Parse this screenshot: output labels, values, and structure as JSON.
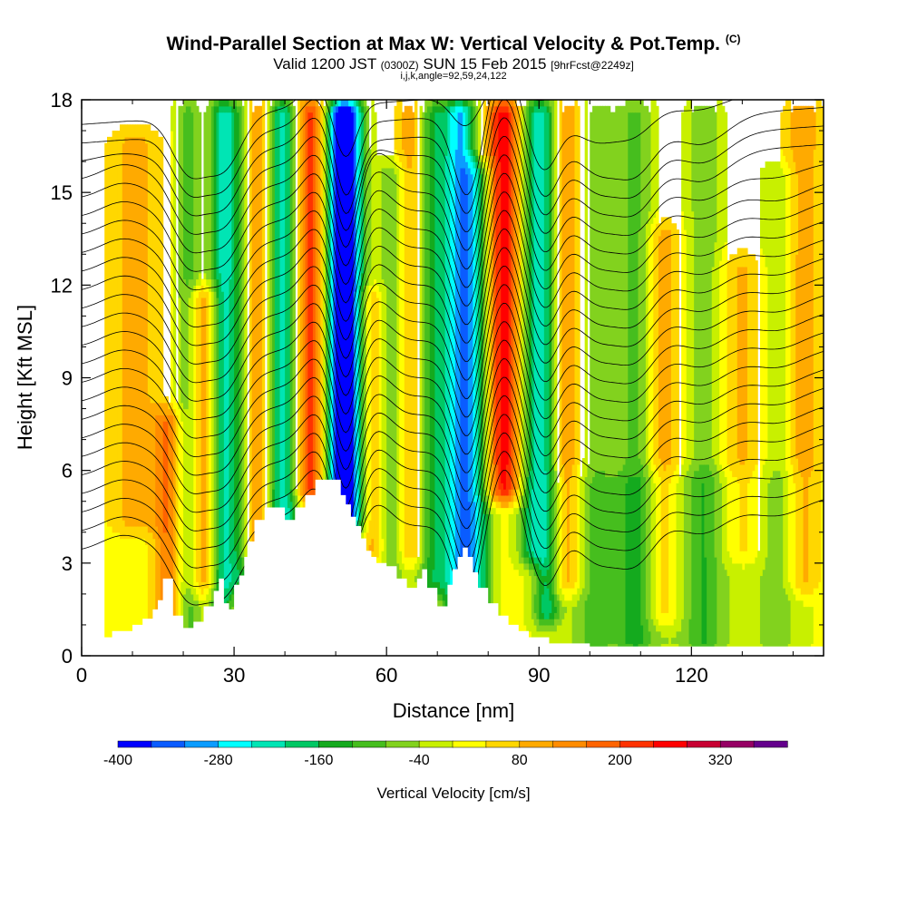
{
  "title": {
    "main": "Wind-Parallel Section at Max W: Vertical Velocity & Pot.Temp.",
    "copyright": "(C)",
    "valid_a": "Valid 1200 JST",
    "valid_z": "(0300Z)",
    "valid_b": "SUN 15 Feb 2015",
    "fcst": "[9hrFcst@2249z]",
    "params": "i,j,k,angle=92,59,24,122"
  },
  "chart_data": {
    "type": "heatmap",
    "title": "Wind-Parallel Section at Max W: Vertical Velocity & Pot.Temp.",
    "xlabel": "Distance [nm]",
    "ylabel": "Height [Kft MSL]",
    "xlim": [
      0,
      146
    ],
    "ylim": [
      0,
      18
    ],
    "x_ticks": [
      0,
      30,
      60,
      90,
      120
    ],
    "y_ticks": [
      0,
      3,
      6,
      9,
      12,
      15,
      18
    ],
    "colorbar": {
      "label": "Vertical Velocity [cm/s]",
      "tick_values": [
        -400,
        -280,
        -160,
        -40,
        80,
        200,
        320
      ],
      "tick_labels": [
        "-400",
        "-280",
        "-160",
        "-40",
        "80",
        "200",
        "320"
      ],
      "bins": [
        -400,
        -360,
        -320,
        -280,
        -240,
        -200,
        -160,
        -120,
        -80,
        -40,
        0,
        40,
        80,
        120,
        160,
        200,
        240,
        280,
        320,
        360,
        400
      ],
      "colors": [
        "#0000ff",
        "#0a5cff",
        "#0a9cff",
        "#00ffff",
        "#00e5b4",
        "#00c864",
        "#14aa1e",
        "#46be1e",
        "#82d21e",
        "#c8f000",
        "#ffff00",
        "#ffd700",
        "#ffaa00",
        "#ff8c00",
        "#ff6400",
        "#ff3200",
        "#ff0000",
        "#c80032",
        "#960064",
        "#64008c"
      ]
    },
    "vertical_velocity_features": [
      {
        "x": 10.5,
        "w": 3.5,
        "amp": 80,
        "z": [
          4,
          17
        ]
      },
      {
        "x": 17,
        "w": 2,
        "amp": 140,
        "z": [
          0,
          8
        ]
      },
      {
        "x": 21,
        "w": 1.8,
        "amp": -120,
        "z": [
          0,
          18
        ]
      },
      {
        "x": 24,
        "w": 2.2,
        "amp": 130,
        "z": [
          2,
          12
        ]
      },
      {
        "x": 27.5,
        "w": 1.8,
        "amp": -190,
        "z": [
          0,
          18
        ]
      },
      {
        "x": 31,
        "w": 2.2,
        "amp": -160,
        "z": [
          2,
          18
        ]
      },
      {
        "x": 34.5,
        "w": 2.4,
        "amp": 150,
        "z": [
          3,
          18
        ]
      },
      {
        "x": 38.5,
        "w": 1.8,
        "amp": -200,
        "z": [
          3,
          18
        ]
      },
      {
        "x": 41,
        "w": 1.6,
        "amp": -150,
        "z": [
          4,
          18
        ]
      },
      {
        "x": 45,
        "w": 2.6,
        "amp": 200,
        "z": [
          5,
          18
        ]
      },
      {
        "x": 51,
        "w": 2.2,
        "amp": -420,
        "z": [
          3,
          18
        ]
      },
      {
        "x": 53.5,
        "w": 2,
        "amp": -170,
        "z": [
          4,
          18
        ]
      },
      {
        "x": 57,
        "w": 2,
        "amp": 90,
        "z": [
          3,
          12
        ]
      },
      {
        "x": 61,
        "w": 2,
        "amp": -100,
        "z": [
          2,
          16
        ]
      },
      {
        "x": 65,
        "w": 2,
        "amp": 100,
        "z": [
          3,
          18
        ]
      },
      {
        "x": 69,
        "w": 2.2,
        "amp": -160,
        "z": [
          2,
          18
        ]
      },
      {
        "x": 74.5,
        "w": 2.3,
        "amp": -300,
        "z": [
          1,
          18
        ]
      },
      {
        "x": 78,
        "w": 2,
        "amp": -170,
        "z": [
          1,
          16
        ]
      },
      {
        "x": 83,
        "w": 2.6,
        "amp": 240,
        "z": [
          5,
          18
        ]
      },
      {
        "x": 88.5,
        "w": 1.8,
        "amp": -170,
        "z": [
          3,
          18
        ]
      },
      {
        "x": 91.5,
        "w": 1.8,
        "amp": -190,
        "z": [
          1,
          18
        ]
      },
      {
        "x": 95.5,
        "w": 2.5,
        "amp": 120,
        "z": [
          2,
          18
        ]
      },
      {
        "x": 101,
        "w": 3,
        "amp": -90,
        "z": [
          0,
          18
        ]
      },
      {
        "x": 109,
        "w": 2.5,
        "amp": -110,
        "z": [
          0,
          18
        ]
      },
      {
        "x": 114.5,
        "w": 2.2,
        "amp": 90,
        "z": [
          1,
          14
        ]
      },
      {
        "x": 122.5,
        "w": 2.5,
        "amp": -90,
        "z": [
          0,
          18
        ]
      },
      {
        "x": 130,
        "w": 3,
        "amp": 70,
        "z": [
          3,
          13
        ]
      },
      {
        "x": 137,
        "w": 2.5,
        "amp": -60,
        "z": [
          0,
          16
        ]
      },
      {
        "x": 142,
        "w": 2.5,
        "amp": 90,
        "z": [
          2,
          18
        ]
      },
      {
        "x": 118,
        "w": 18,
        "amp": -55,
        "z": [
          0,
          6
        ]
      }
    ],
    "terrain": {
      "x": [
        0,
        2,
        2,
        6,
        6,
        10,
        10,
        12,
        12,
        14,
        14,
        15,
        15,
        16,
        16,
        18,
        18,
        20,
        20,
        22,
        22,
        24,
        24,
        26,
        26,
        27,
        27,
        28,
        28,
        29,
        29,
        30,
        30,
        31,
        31,
        32,
        32,
        33,
        33,
        34,
        34,
        36,
        36,
        38,
        38,
        40,
        40,
        42,
        42,
        44,
        44,
        46,
        46,
        47,
        47,
        48,
        48,
        51,
        51,
        52,
        52,
        53,
        53,
        54,
        54,
        55,
        55,
        56,
        56,
        57,
        57,
        58,
        58,
        60,
        60,
        62,
        62,
        64,
        64,
        66,
        66,
        67,
        67,
        68,
        68,
        70,
        70,
        72,
        72,
        73,
        73,
        74,
        74,
        75,
        75,
        76,
        76,
        77,
        77,
        78,
        78,
        80,
        80,
        82,
        82,
        84,
        84,
        86,
        86,
        88,
        88,
        92,
        92,
        100,
        100,
        140,
        140,
        146
      ],
      "height_kft": [
        0.3,
        0.3,
        0.6,
        0.6,
        0.8,
        0.8,
        1.0,
        1.0,
        1.2,
        1.2,
        1.5,
        1.5,
        1.8,
        1.8,
        2.5,
        2.5,
        1.3,
        1.3,
        0.9,
        0.9,
        1.1,
        1.1,
        1.6,
        1.6,
        2.1,
        2.1,
        2.5,
        2.5,
        1.7,
        1.7,
        1.5,
        1.5,
        2.3,
        2.3,
        2.6,
        2.6,
        3.2,
        3.2,
        3.7,
        3.7,
        4.4,
        4.4,
        4.8,
        4.8,
        4.8,
        4.8,
        4.4,
        4.4,
        4.8,
        4.8,
        5.2,
        5.2,
        5.7,
        5.7,
        5.7,
        5.7,
        5.7,
        5.7,
        5.2,
        5.2,
        4.9,
        4.9,
        4.5,
        4.5,
        4.2,
        4.2,
        3.8,
        3.8,
        3.4,
        3.4,
        3.2,
        3.2,
        3.0,
        3.0,
        2.9,
        2.9,
        2.5,
        2.5,
        2.2,
        2.2,
        2.5,
        2.5,
        2.8,
        2.8,
        2.2,
        2.2,
        1.6,
        1.6,
        2.3,
        2.3,
        2.8,
        2.8,
        3.2,
        3.2,
        3.5,
        3.5,
        3.2,
        3.2,
        2.7,
        2.7,
        2.2,
        2.2,
        1.7,
        1.7,
        1.3,
        1.3,
        1.0,
        1.0,
        0.8,
        0.8,
        0.6,
        0.6,
        0.4,
        0.4,
        0.3,
        0.3,
        0.3,
        0.3
      ]
    },
    "theta_contours": {
      "count": 24,
      "spacing_kft": 0.6,
      "base_at_x0_kft": 3.4,
      "wave_crests": [
        {
          "x": 8,
          "w": 4,
          "amp": 0.4,
          "z0": 2,
          "z1": 16
        },
        {
          "x": 21,
          "w": 3.3,
          "amp": -1.7,
          "z0": 3,
          "z1": 18
        },
        {
          "x": 28,
          "w": 3.5,
          "amp": -1.7,
          "z0": 3,
          "z1": 18
        },
        {
          "x": 46,
          "w": 2.8,
          "amp": 0.9,
          "z0": 4,
          "z1": 18
        },
        {
          "x": 52,
          "w": 2.2,
          "amp": -2.4,
          "z0": 4,
          "z1": 18
        },
        {
          "x": 58,
          "w": 3,
          "amp": 0.8,
          "z0": 3,
          "z1": 16
        },
        {
          "x": 76,
          "w": 2.8,
          "amp": -2.7,
          "z0": 2,
          "z1": 18
        },
        {
          "x": 83,
          "w": 3,
          "amp": 1.8,
          "z0": 4,
          "z1": 18
        },
        {
          "x": 91,
          "w": 3,
          "amp": -2.2,
          "z0": 2,
          "z1": 18
        },
        {
          "x": 101,
          "w": 4,
          "amp": -1.4,
          "z0": 1,
          "z1": 18
        },
        {
          "x": 109,
          "w": 4,
          "amp": -1.6,
          "z0": 1,
          "z1": 18
        },
        {
          "x": 122,
          "w": 5,
          "amp": -0.9,
          "z0": 0,
          "z1": 18
        },
        {
          "x": 137,
          "w": 5,
          "amp": -0.5,
          "z0": 0,
          "z1": 16
        }
      ]
    }
  }
}
